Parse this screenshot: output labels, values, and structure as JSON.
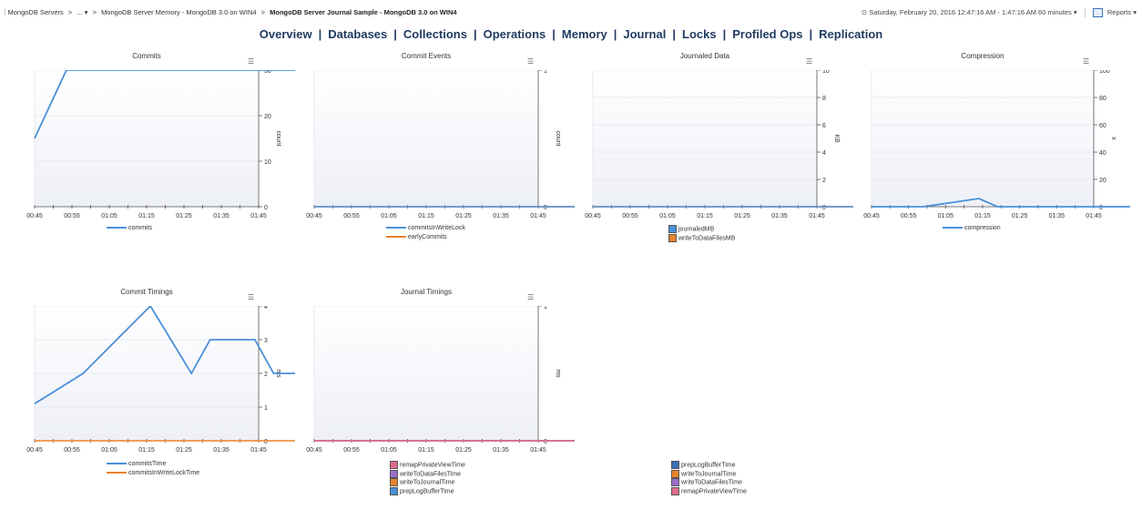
{
  "breadcrumb": {
    "root": "MongoDB Servers",
    "ellipsis": "...",
    "middle": "MongoDB Server Memory - MongoDB 3.0 on WIN4",
    "current": "MongoDB Server Journal Sample - MongoDB 3.0 on WIN4"
  },
  "header": {
    "time_range": "Saturday, February 20, 2016 12:47:16 AM - 1:47:16 AM 60 minutes",
    "reports_label": "Reports"
  },
  "nav": [
    "Overview",
    "Databases",
    "Collections",
    "Operations",
    "Memory",
    "Journal",
    "Locks",
    "Profiled Ops",
    "Replication"
  ],
  "colors": {
    "blue": "#4a90d9",
    "orange": "#e8832a",
    "purple": "#9b6fc9",
    "pink": "#e06c8c",
    "dark_blue": "#3b6fb6"
  },
  "chart_data": [
    {
      "type": "line",
      "title": "Commits",
      "ylabel": "count",
      "ylim": [
        0,
        30
      ],
      "yticks": [
        "0",
        "10",
        "20",
        "30"
      ],
      "x": [
        "00:45",
        "00:55",
        "01:05",
        "01:15",
        "01:25",
        "01:35",
        "01:45"
      ],
      "series": [
        {
          "name": "commits",
          "color": "#4a90d9",
          "points": [
            [
              0,
              15
            ],
            [
              0.85,
              30
            ],
            [
              7,
              30
            ]
          ]
        }
      ]
    },
    {
      "type": "line",
      "title": "Commit Events",
      "ylabel": "count",
      "ylim": [
        0,
        1
      ],
      "yticks": [
        "0",
        "1"
      ],
      "x": [
        "00:45",
        "00:55",
        "01:05",
        "01:15",
        "01:25",
        "01:35",
        "01:45"
      ],
      "series": [
        {
          "name": "commitsInWriteLock",
          "color": "#4a90d9",
          "points": [
            [
              0,
              0
            ],
            [
              7,
              0
            ]
          ]
        },
        {
          "name": "earlyCommits",
          "color": "#e8832a",
          "points": [
            [
              0,
              0
            ],
            [
              7,
              0
            ]
          ]
        }
      ]
    },
    {
      "type": "line",
      "title": "Journaled Data",
      "ylabel": "KB",
      "ylim": [
        0,
        10
      ],
      "yticks": [
        "0",
        "2",
        "4",
        "6",
        "8",
        "10"
      ],
      "x": [
        "00:45",
        "00:55",
        "01:05",
        "01:15",
        "01:25",
        "01:35",
        "01:45"
      ],
      "legend_style": "box",
      "series": [
        {
          "name": "journaledMB",
          "color": "#4a90d9",
          "points": [
            [
              0,
              0
            ],
            [
              7,
              0
            ]
          ]
        },
        {
          "name": "writeToDataFilesMB",
          "color": "#e8832a",
          "points": [
            [
              0,
              0
            ],
            [
              7,
              0
            ]
          ]
        }
      ]
    },
    {
      "type": "line",
      "title": "Compression",
      "ylabel": "x",
      "ylim": [
        0,
        100
      ],
      "yticks": [
        "0",
        "20",
        "40",
        "60",
        "80",
        "100"
      ],
      "x": [
        "00:45",
        "00:55",
        "01:05",
        "01:15",
        "01:25",
        "01:35",
        "01:45"
      ],
      "series": [
        {
          "name": "compression",
          "color": "#4a90d9",
          "points": [
            [
              0,
              0
            ],
            [
              1.4,
              0
            ],
            [
              2.9,
              6
            ],
            [
              3.4,
              0
            ],
            [
              7,
              0
            ]
          ]
        }
      ]
    },
    {
      "type": "line",
      "title": "Commit Timings",
      "ylabel": "ms",
      "ylim": [
        0,
        4
      ],
      "yticks": [
        "0",
        "1",
        "2",
        "3",
        "4"
      ],
      "x": [
        "00:45",
        "00:55",
        "01:05",
        "01:15",
        "01:25",
        "01:35",
        "01:45"
      ],
      "series": [
        {
          "name": "commitsTime",
          "color": "#4a90d9",
          "points": [
            [
              0,
              1.1
            ],
            [
              1.3,
              2
            ],
            [
              3.1,
              4
            ],
            [
              4.2,
              2
            ],
            [
              4.7,
              3
            ],
            [
              5.9,
              3
            ],
            [
              6.4,
              2
            ],
            [
              7,
              2
            ]
          ]
        },
        {
          "name": "commitsInWriteLockTime",
          "color": "#e8832a",
          "points": [
            [
              0,
              0
            ],
            [
              7,
              0
            ]
          ]
        }
      ]
    },
    {
      "type": "line",
      "title": "Journal Timings",
      "ylabel": "ms",
      "ylim": [
        0,
        1
      ],
      "yticks": [
        "0",
        "1"
      ],
      "x": [
        "00:45",
        "00:55",
        "01:05",
        "01:15",
        "01:25",
        "01:35",
        "01:45"
      ],
      "legend_style": "box",
      "series": [
        {
          "name": "remapPrivateViewTime",
          "color": "#e06c8c",
          "points": [
            [
              0,
              0
            ],
            [
              7,
              0
            ]
          ]
        },
        {
          "name": "writeToDataFilesTime",
          "color": "#9b6fc9",
          "points": [
            [
              0,
              0
            ],
            [
              7,
              0
            ]
          ]
        },
        {
          "name": "writeToJournalTime",
          "color": "#e8832a",
          "points": [
            [
              0,
              0
            ],
            [
              7,
              0
            ]
          ]
        },
        {
          "name": "prepLogBufferTime",
          "color": "#4a90d9",
          "points": [
            [
              0,
              0
            ],
            [
              7,
              0
            ]
          ]
        }
      ],
      "extra_legend": [
        {
          "name": "prepLogBufferTime",
          "color": "#3b6fb6"
        },
        {
          "name": "writeToJournalTime",
          "color": "#e8832a"
        },
        {
          "name": "writeToDataFilesTime",
          "color": "#9b6fc9"
        },
        {
          "name": "remapPrivateViewTime",
          "color": "#e06c8c"
        }
      ]
    }
  ]
}
